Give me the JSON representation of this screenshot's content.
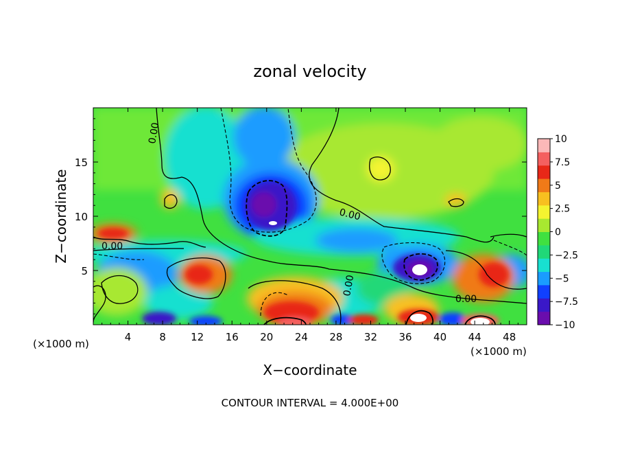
{
  "chart_data": {
    "type": "heatmap",
    "title": "zonal velocity",
    "xlabel": "X−coordinate",
    "ylabel": "Z−coordinate",
    "x_unit_left": "(×1000 m)",
    "x_unit_right": "(×1000 m)",
    "footer": "CONTOUR INTERVAL = 4.000E+00",
    "xlim": [
      0,
      50
    ],
    "ylim": [
      0,
      20
    ],
    "x_ticks": [
      "4",
      "8",
      "12",
      "16",
      "20",
      "24",
      "28",
      "32",
      "36",
      "40",
      "44",
      "48"
    ],
    "x_tick_values": [
      4,
      8,
      12,
      16,
      20,
      24,
      28,
      32,
      36,
      40,
      44,
      48
    ],
    "y_ticks": [
      "5",
      "10",
      "15"
    ],
    "y_tick_values": [
      5,
      10,
      15
    ],
    "colorbar": {
      "labels": [
        "10",
        "7.5",
        "5",
        "2.5",
        "0",
        "−2.5",
        "−5",
        "−7.5",
        "−10"
      ],
      "values": [
        10,
        7.5,
        5,
        2.5,
        0,
        -2.5,
        -5,
        -7.5,
        -10
      ],
      "colors": [
        "#6a0dad",
        "#3a18c8",
        "#1040ff",
        "#1a9cff",
        "#18e0d0",
        "#20d878",
        "#40e040",
        "#a8e830",
        "#f4f430",
        "#f8c020",
        "#f07a18",
        "#e82818",
        "#f46060",
        "#fbb8b8"
      ]
    },
    "contour_labels": [
      "0.00",
      "0.00",
      "0.00",
      "0.00",
      "0.00"
    ],
    "features": [
      {
        "name": "negative-core-upper",
        "x": 21,
        "z": 11,
        "value": -10
      },
      {
        "name": "negative-core-right",
        "x": 37.5,
        "z": 5,
        "value": -10
      },
      {
        "name": "negative-west",
        "x": 9,
        "z": 0.3,
        "value": -9
      },
      {
        "name": "positive-surface-21",
        "x": 22,
        "z": 1.5,
        "value": 10
      },
      {
        "name": "positive-surface-37",
        "x": 37,
        "z": 0.8,
        "value": 10
      },
      {
        "name": "positive-surface-44",
        "x": 44,
        "z": 0.5,
        "value": 12
      },
      {
        "name": "positive-mid-12",
        "x": 12.5,
        "z": 4.8,
        "value": 7.5
      },
      {
        "name": "positive-right-43",
        "x": 43,
        "z": 4.5,
        "value": 6
      },
      {
        "name": "positive-left-4",
        "x": 4,
        "z": 8.5,
        "value": 7
      },
      {
        "name": "positive-upper-33",
        "x": 33,
        "z": 14.5,
        "value": 4
      }
    ]
  }
}
